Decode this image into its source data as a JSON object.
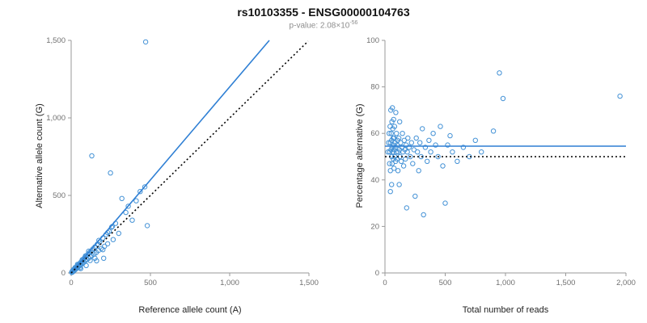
{
  "header": {
    "title": "rs10103355 - ENSG00000104763",
    "pvalue_base": "p-value: 2.08×10",
    "pvalue_exponent": "-56"
  },
  "colors": {
    "point": "#4492d6",
    "fit_line": "#2e7fd4",
    "reference_line": "#000000",
    "axis": "#9a9a9a",
    "tick_text": "#707070"
  },
  "chart_data": [
    {
      "type": "scatter",
      "title": "",
      "xlabel": "Reference allele count (A)",
      "ylabel": "Alternative allele count (G)",
      "xlim": [
        0,
        1500
      ],
      "ylim": [
        0,
        1500
      ],
      "grid": false,
      "xticks": [
        0,
        500,
        1000,
        1500
      ],
      "xtick_labels": [
        "0",
        "500",
        "1,000",
        "1,500"
      ],
      "yticks": [
        0,
        500,
        1000,
        1500
      ],
      "ytick_labels": [
        "0",
        "500",
        "1,000",
        "1,500"
      ],
      "points": [
        [
          3,
          4
        ],
        [
          5,
          3
        ],
        [
          6,
          8
        ],
        [
          8,
          6
        ],
        [
          8,
          14
        ],
        [
          10,
          12
        ],
        [
          12,
          9
        ],
        [
          14,
          16
        ],
        [
          15,
          12
        ],
        [
          15,
          22
        ],
        [
          18,
          20
        ],
        [
          20,
          16
        ],
        [
          22,
          25
        ],
        [
          24,
          20
        ],
        [
          25,
          35
        ],
        [
          26,
          30
        ],
        [
          28,
          24
        ],
        [
          30,
          34
        ],
        [
          32,
          28
        ],
        [
          35,
          40
        ],
        [
          38,
          32
        ],
        [
          40,
          46
        ],
        [
          40,
          55
        ],
        [
          42,
          36
        ],
        [
          45,
          52
        ],
        [
          48,
          42
        ],
        [
          50,
          58
        ],
        [
          55,
          48
        ],
        [
          55,
          35
        ],
        [
          58,
          66
        ],
        [
          60,
          52
        ],
        [
          60,
          28
        ],
        [
          65,
          74
        ],
        [
          68,
          58
        ],
        [
          70,
          80
        ],
        [
          70,
          85
        ],
        [
          75,
          64
        ],
        [
          78,
          90
        ],
        [
          80,
          70
        ],
        [
          85,
          98
        ],
        [
          90,
          78
        ],
        [
          90,
          110
        ],
        [
          95,
          108
        ],
        [
          95,
          48
        ],
        [
          100,
          88
        ],
        [
          105,
          120
        ],
        [
          110,
          95
        ],
        [
          110,
          140
        ],
        [
          115,
          130
        ],
        [
          120,
          105
        ],
        [
          120,
          80
        ],
        [
          125,
          142
        ],
        [
          130,
          112
        ],
        [
          130,
          755
        ],
        [
          138,
          155
        ],
        [
          145,
          122
        ],
        [
          150,
          168
        ],
        [
          150,
          95
        ],
        [
          158,
          132
        ],
        [
          160,
          78
        ],
        [
          165,
          185
        ],
        [
          172,
          145
        ],
        [
          175,
          210
        ],
        [
          180,
          200
        ],
        [
          190,
          158
        ],
        [
          200,
          225
        ],
        [
          200,
          150
        ],
        [
          205,
          95
        ],
        [
          210,
          172
        ],
        [
          220,
          248
        ],
        [
          230,
          188
        ],
        [
          230,
          260
        ],
        [
          240,
          268
        ],
        [
          248,
          645
        ],
        [
          255,
          295
        ],
        [
          260,
          300
        ],
        [
          265,
          215
        ],
        [
          280,
          320
        ],
        [
          300,
          255
        ],
        [
          320,
          480
        ],
        [
          345,
          390
        ],
        [
          360,
          430
        ],
        [
          385,
          340
        ],
        [
          410,
          465
        ],
        [
          435,
          525
        ],
        [
          465,
          555
        ],
        [
          470,
          1490
        ],
        [
          480,
          305
        ]
      ],
      "lines": [
        {
          "name": "fit-line",
          "x1": 0,
          "y1": 0,
          "x2": 1250,
          "y2": 1500,
          "color": "#2e7fd4",
          "dash": ""
        },
        {
          "name": "identity-line",
          "x1": 0,
          "y1": 0,
          "x2": 1495,
          "y2": 1495,
          "color": "#000000",
          "dash": "2,3"
        }
      ]
    },
    {
      "type": "scatter",
      "title": "",
      "xlabel": "Total number of reads",
      "ylabel": "Percentage alternative (G)",
      "xlim": [
        0,
        2000
      ],
      "ylim": [
        0,
        100
      ],
      "grid": false,
      "xticks": [
        0,
        500,
        1000,
        1500,
        2000
      ],
      "xtick_labels": [
        "0",
        "500",
        "1,000",
        "1,500",
        "2,000"
      ],
      "yticks": [
        0,
        20,
        40,
        60,
        80,
        100
      ],
      "ytick_labels": [
        "0",
        "20",
        "40",
        "60",
        "80",
        "100"
      ],
      "points": [
        [
          25,
          52
        ],
        [
          30,
          56
        ],
        [
          35,
          60
        ],
        [
          38,
          47
        ],
        [
          40,
          52
        ],
        [
          42,
          63
        ],
        [
          45,
          56
        ],
        [
          45,
          44
        ],
        [
          45,
          35
        ],
        [
          48,
          70
        ],
        [
          50,
          53
        ],
        [
          52,
          60
        ],
        [
          55,
          50
        ],
        [
          55,
          57
        ],
        [
          55,
          38
        ],
        [
          58,
          65
        ],
        [
          60,
          54
        ],
        [
          60,
          47
        ],
        [
          62,
          71
        ],
        [
          65,
          62
        ],
        [
          65,
          52
        ],
        [
          68,
          58
        ],
        [
          70,
          55
        ],
        [
          70,
          49
        ],
        [
          72,
          66
        ],
        [
          75,
          58
        ],
        [
          75,
          45
        ],
        [
          78,
          53
        ],
        [
          80,
          63
        ],
        [
          82,
          50
        ],
        [
          85,
          56
        ],
        [
          88,
          48
        ],
        [
          90,
          54
        ],
        [
          90,
          69
        ],
        [
          95,
          60
        ],
        [
          95,
          52
        ],
        [
          100,
          55
        ],
        [
          100,
          49
        ],
        [
          105,
          57
        ],
        [
          108,
          44
        ],
        [
          110,
          52
        ],
        [
          115,
          58
        ],
        [
          118,
          38
        ],
        [
          120,
          53
        ],
        [
          122,
          65
        ],
        [
          125,
          50
        ],
        [
          130,
          56
        ],
        [
          135,
          48
        ],
        [
          140,
          54
        ],
        [
          145,
          60
        ],
        [
          150,
          52
        ],
        [
          155,
          46
        ],
        [
          160,
          57
        ],
        [
          165,
          53
        ],
        [
          170,
          49
        ],
        [
          175,
          55
        ],
        [
          180,
          28
        ],
        [
          185,
          52
        ],
        [
          190,
          58
        ],
        [
          200,
          54
        ],
        [
          210,
          50
        ],
        [
          220,
          56
        ],
        [
          230,
          47
        ],
        [
          240,
          53
        ],
        [
          250,
          33
        ],
        [
          260,
          58
        ],
        [
          270,
          52
        ],
        [
          280,
          44
        ],
        [
          290,
          56
        ],
        [
          300,
          50
        ],
        [
          310,
          62
        ],
        [
          320,
          25
        ],
        [
          335,
          54
        ],
        [
          350,
          48
        ],
        [
          365,
          57
        ],
        [
          380,
          52
        ],
        [
          400,
          60
        ],
        [
          420,
          55
        ],
        [
          440,
          50
        ],
        [
          460,
          63
        ],
        [
          480,
          46
        ],
        [
          500,
          30
        ],
        [
          520,
          55
        ],
        [
          540,
          59
        ],
        [
          560,
          52
        ],
        [
          600,
          48
        ],
        [
          650,
          54
        ],
        [
          700,
          50
        ],
        [
          750,
          57
        ],
        [
          800,
          52
        ],
        [
          900,
          61
        ],
        [
          950,
          86
        ],
        [
          980,
          75
        ],
        [
          1950,
          76
        ]
      ],
      "lines": [
        {
          "name": "fit-line",
          "x1": 0,
          "y1": 54.5,
          "x2": 2000,
          "y2": 54.5,
          "color": "#2e7fd4",
          "dash": ""
        },
        {
          "name": "reference-line",
          "x1": 0,
          "y1": 50,
          "x2": 2000,
          "y2": 50,
          "color": "#000000",
          "dash": "2,3"
        }
      ]
    }
  ]
}
